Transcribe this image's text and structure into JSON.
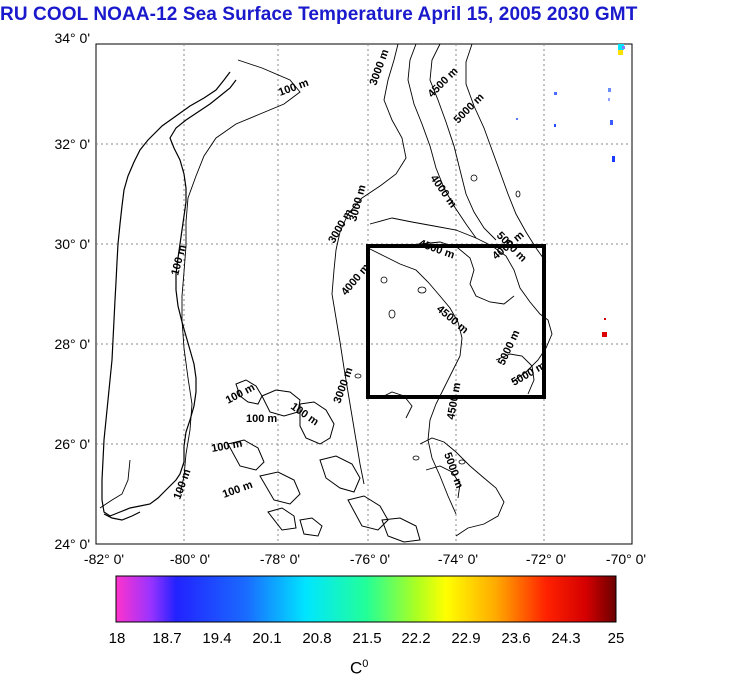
{
  "title": "RU COOL  NOAA-12 Sea Surface Temperature April 15, 2005 2030 GMT",
  "axes": {
    "lat_labels": [
      "34° 0'",
      "32° 0'",
      "30° 0'",
      "28° 0'",
      "26° 0'",
      "24° 0'"
    ],
    "lon_labels": [
      "-82° 0'",
      "-80° 0'",
      "-78° 0'",
      "-76° 0'",
      "-74° 0'",
      "-72° 0'",
      "-70° 0'"
    ],
    "lat_range": [
      24,
      34
    ],
    "lon_range": [
      -82,
      -70
    ],
    "grid": "dotted"
  },
  "contour_labels": [
    "100 m",
    "100 m",
    "100 m",
    "100 m",
    "100 m",
    "100 m",
    "100 m",
    "100 m",
    "3000 m",
    "3000 m",
    "3000 m",
    "4000 m",
    "4000 m",
    "4500 m",
    "4500 m",
    "4500 m",
    "4500 m",
    "5000 m",
    "5000 m",
    "5000 m",
    "5000 m",
    "5000 m",
    "4000 m",
    "3000 m"
  ],
  "study_box": {
    "lon_range": [
      -76,
      -72
    ],
    "lat_range": [
      27,
      30
    ]
  },
  "colorbar": {
    "ticks": [
      "18",
      "18.7",
      "19.4",
      "20.1",
      "20.8",
      "21.5",
      "22.2",
      "22.9",
      "23.6",
      "24.3",
      "25"
    ],
    "unit_base": "C",
    "unit_sup": "0",
    "range": [
      18,
      25
    ]
  },
  "colors": {
    "title": "#1a1acc",
    "box": "#000000",
    "land": "#ffffff"
  }
}
